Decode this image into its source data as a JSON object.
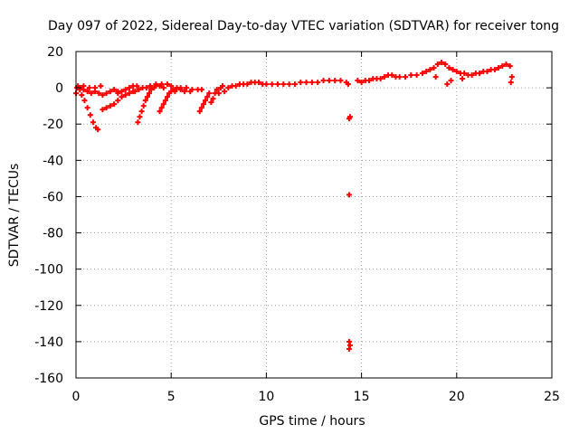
{
  "chart_data": {
    "type": "scatter",
    "title": "Day 097 of 2022, Sidereal Day-to-day VTEC variation (SDTVAR) for receiver tong",
    "xlabel": "GPS time / hours",
    "ylabel": "SDTVAR / TECUs",
    "xlim": [
      0,
      25
    ],
    "ylim": [
      -160,
      20
    ],
    "xticks": [
      0,
      5,
      10,
      15,
      20,
      25
    ],
    "yticks": [
      -160,
      -140,
      -120,
      -100,
      -80,
      -60,
      -40,
      -20,
      0,
      20
    ],
    "grid": true,
    "marker": "+",
    "color": "#ff0000",
    "series": [
      {
        "name": "SDTVAR",
        "points": [
          [
            0.0,
            -3
          ],
          [
            0.05,
            0
          ],
          [
            0.1,
            1
          ],
          [
            0.2,
            -1
          ],
          [
            0.3,
            -4
          ],
          [
            0.45,
            -7
          ],
          [
            0.6,
            -11
          ],
          [
            0.75,
            -15
          ],
          [
            0.9,
            -19
          ],
          [
            1.05,
            -22
          ],
          [
            1.15,
            -23
          ],
          [
            0.2,
            0
          ],
          [
            0.4,
            -1
          ],
          [
            0.6,
            -2
          ],
          [
            0.8,
            -3
          ],
          [
            1.0,
            -2
          ],
          [
            1.2,
            -3
          ],
          [
            1.4,
            -4
          ],
          [
            1.6,
            -3
          ],
          [
            1.8,
            -2
          ],
          [
            2.0,
            -1
          ],
          [
            2.2,
            -2
          ],
          [
            0.7,
            0
          ],
          [
            1.0,
            0
          ],
          [
            1.3,
            1
          ],
          [
            0.4,
            1
          ],
          [
            0.3,
            0
          ],
          [
            1.4,
            -12
          ],
          [
            1.6,
            -11
          ],
          [
            1.8,
            -10
          ],
          [
            2.0,
            -9
          ],
          [
            2.2,
            -7
          ],
          [
            2.4,
            -5
          ],
          [
            2.6,
            -4
          ],
          [
            2.8,
            -3
          ],
          [
            3.0,
            -2
          ],
          [
            2.2,
            -3
          ],
          [
            2.4,
            -2
          ],
          [
            2.6,
            -1
          ],
          [
            2.8,
            0
          ],
          [
            3.0,
            1
          ],
          [
            3.2,
            1
          ],
          [
            3.25,
            -19
          ],
          [
            3.35,
            -16
          ],
          [
            3.45,
            -13
          ],
          [
            3.55,
            -10
          ],
          [
            3.65,
            -7
          ],
          [
            3.75,
            -5
          ],
          [
            3.85,
            -3
          ],
          [
            3.95,
            -1
          ],
          [
            4.1,
            0
          ],
          [
            3.1,
            -2
          ],
          [
            3.3,
            -1
          ],
          [
            3.5,
            0
          ],
          [
            3.7,
            0
          ],
          [
            3.9,
            1
          ],
          [
            4.2,
            1
          ],
          [
            4.4,
            1
          ],
          [
            4.6,
            0
          ],
          [
            4.4,
            -13
          ],
          [
            4.5,
            -11
          ],
          [
            4.6,
            -9
          ],
          [
            4.7,
            -7
          ],
          [
            4.8,
            -5
          ],
          [
            4.9,
            -3
          ],
          [
            5.0,
            -2
          ],
          [
            5.1,
            -1
          ],
          [
            4.2,
            2
          ],
          [
            4.5,
            2
          ],
          [
            4.8,
            2
          ],
          [
            5.0,
            1
          ],
          [
            5.3,
            0
          ],
          [
            5.5,
            0
          ],
          [
            5.8,
            0
          ],
          [
            6.1,
            -1
          ],
          [
            6.4,
            -1
          ],
          [
            6.6,
            -1
          ],
          [
            5.2,
            -2
          ],
          [
            5.5,
            -1
          ],
          [
            5.7,
            -2
          ],
          [
            6.0,
            -2
          ],
          [
            6.5,
            -13
          ],
          [
            6.6,
            -11
          ],
          [
            6.7,
            -9
          ],
          [
            6.8,
            -7
          ],
          [
            6.9,
            -5
          ],
          [
            7.0,
            -3
          ],
          [
            7.1,
            -8
          ],
          [
            7.2,
            -6
          ],
          [
            7.3,
            -3
          ],
          [
            7.4,
            -1
          ],
          [
            7.5,
            -3
          ],
          [
            7.6,
            0
          ],
          [
            7.7,
            1
          ],
          [
            7.8,
            -2
          ],
          [
            8.0,
            0
          ],
          [
            8.2,
            1
          ],
          [
            8.4,
            1
          ],
          [
            8.6,
            2
          ],
          [
            8.8,
            2
          ],
          [
            9.0,
            2
          ],
          [
            9.2,
            3
          ],
          [
            9.4,
            3
          ],
          [
            9.6,
            3
          ],
          [
            9.8,
            2
          ],
          [
            10.0,
            2
          ],
          [
            10.3,
            2
          ],
          [
            10.6,
            2
          ],
          [
            10.9,
            2
          ],
          [
            11.2,
            2
          ],
          [
            11.5,
            2
          ],
          [
            11.8,
            3
          ],
          [
            12.1,
            3
          ],
          [
            12.4,
            3
          ],
          [
            12.7,
            3
          ],
          [
            13.0,
            4
          ],
          [
            13.3,
            4
          ],
          [
            13.6,
            4
          ],
          [
            13.9,
            4
          ],
          [
            14.2,
            3
          ],
          [
            14.3,
            2
          ],
          [
            14.35,
            -17
          ],
          [
            14.4,
            -16
          ],
          [
            14.35,
            -59
          ],
          [
            14.35,
            -140
          ],
          [
            14.4,
            -142
          ],
          [
            14.35,
            -144
          ],
          [
            14.8,
            4
          ],
          [
            15.0,
            3
          ],
          [
            15.2,
            4
          ],
          [
            15.4,
            4
          ],
          [
            15.6,
            5
          ],
          [
            15.8,
            5
          ],
          [
            16.0,
            5
          ],
          [
            16.2,
            6
          ],
          [
            16.4,
            7
          ],
          [
            16.6,
            7
          ],
          [
            16.8,
            6
          ],
          [
            17.0,
            6
          ],
          [
            17.3,
            6
          ],
          [
            17.6,
            7
          ],
          [
            17.9,
            7
          ],
          [
            18.2,
            8
          ],
          [
            18.4,
            9
          ],
          [
            18.6,
            10
          ],
          [
            18.8,
            11
          ],
          [
            19.0,
            13
          ],
          [
            19.2,
            14
          ],
          [
            19.4,
            13
          ],
          [
            19.6,
            11
          ],
          [
            19.8,
            10
          ],
          [
            20.0,
            9
          ],
          [
            20.2,
            8
          ],
          [
            20.4,
            8
          ],
          [
            20.6,
            7
          ],
          [
            20.8,
            7
          ],
          [
            21.0,
            8
          ],
          [
            21.2,
            8
          ],
          [
            21.4,
            9
          ],
          [
            21.6,
            9
          ],
          [
            21.8,
            10
          ],
          [
            22.0,
            10
          ],
          [
            22.2,
            11
          ],
          [
            22.4,
            12
          ],
          [
            22.6,
            13
          ],
          [
            22.8,
            12
          ],
          [
            22.9,
            6
          ],
          [
            22.85,
            3
          ],
          [
            19.5,
            2
          ],
          [
            19.7,
            4
          ],
          [
            20.3,
            5
          ],
          [
            18.9,
            6
          ]
        ]
      }
    ]
  }
}
